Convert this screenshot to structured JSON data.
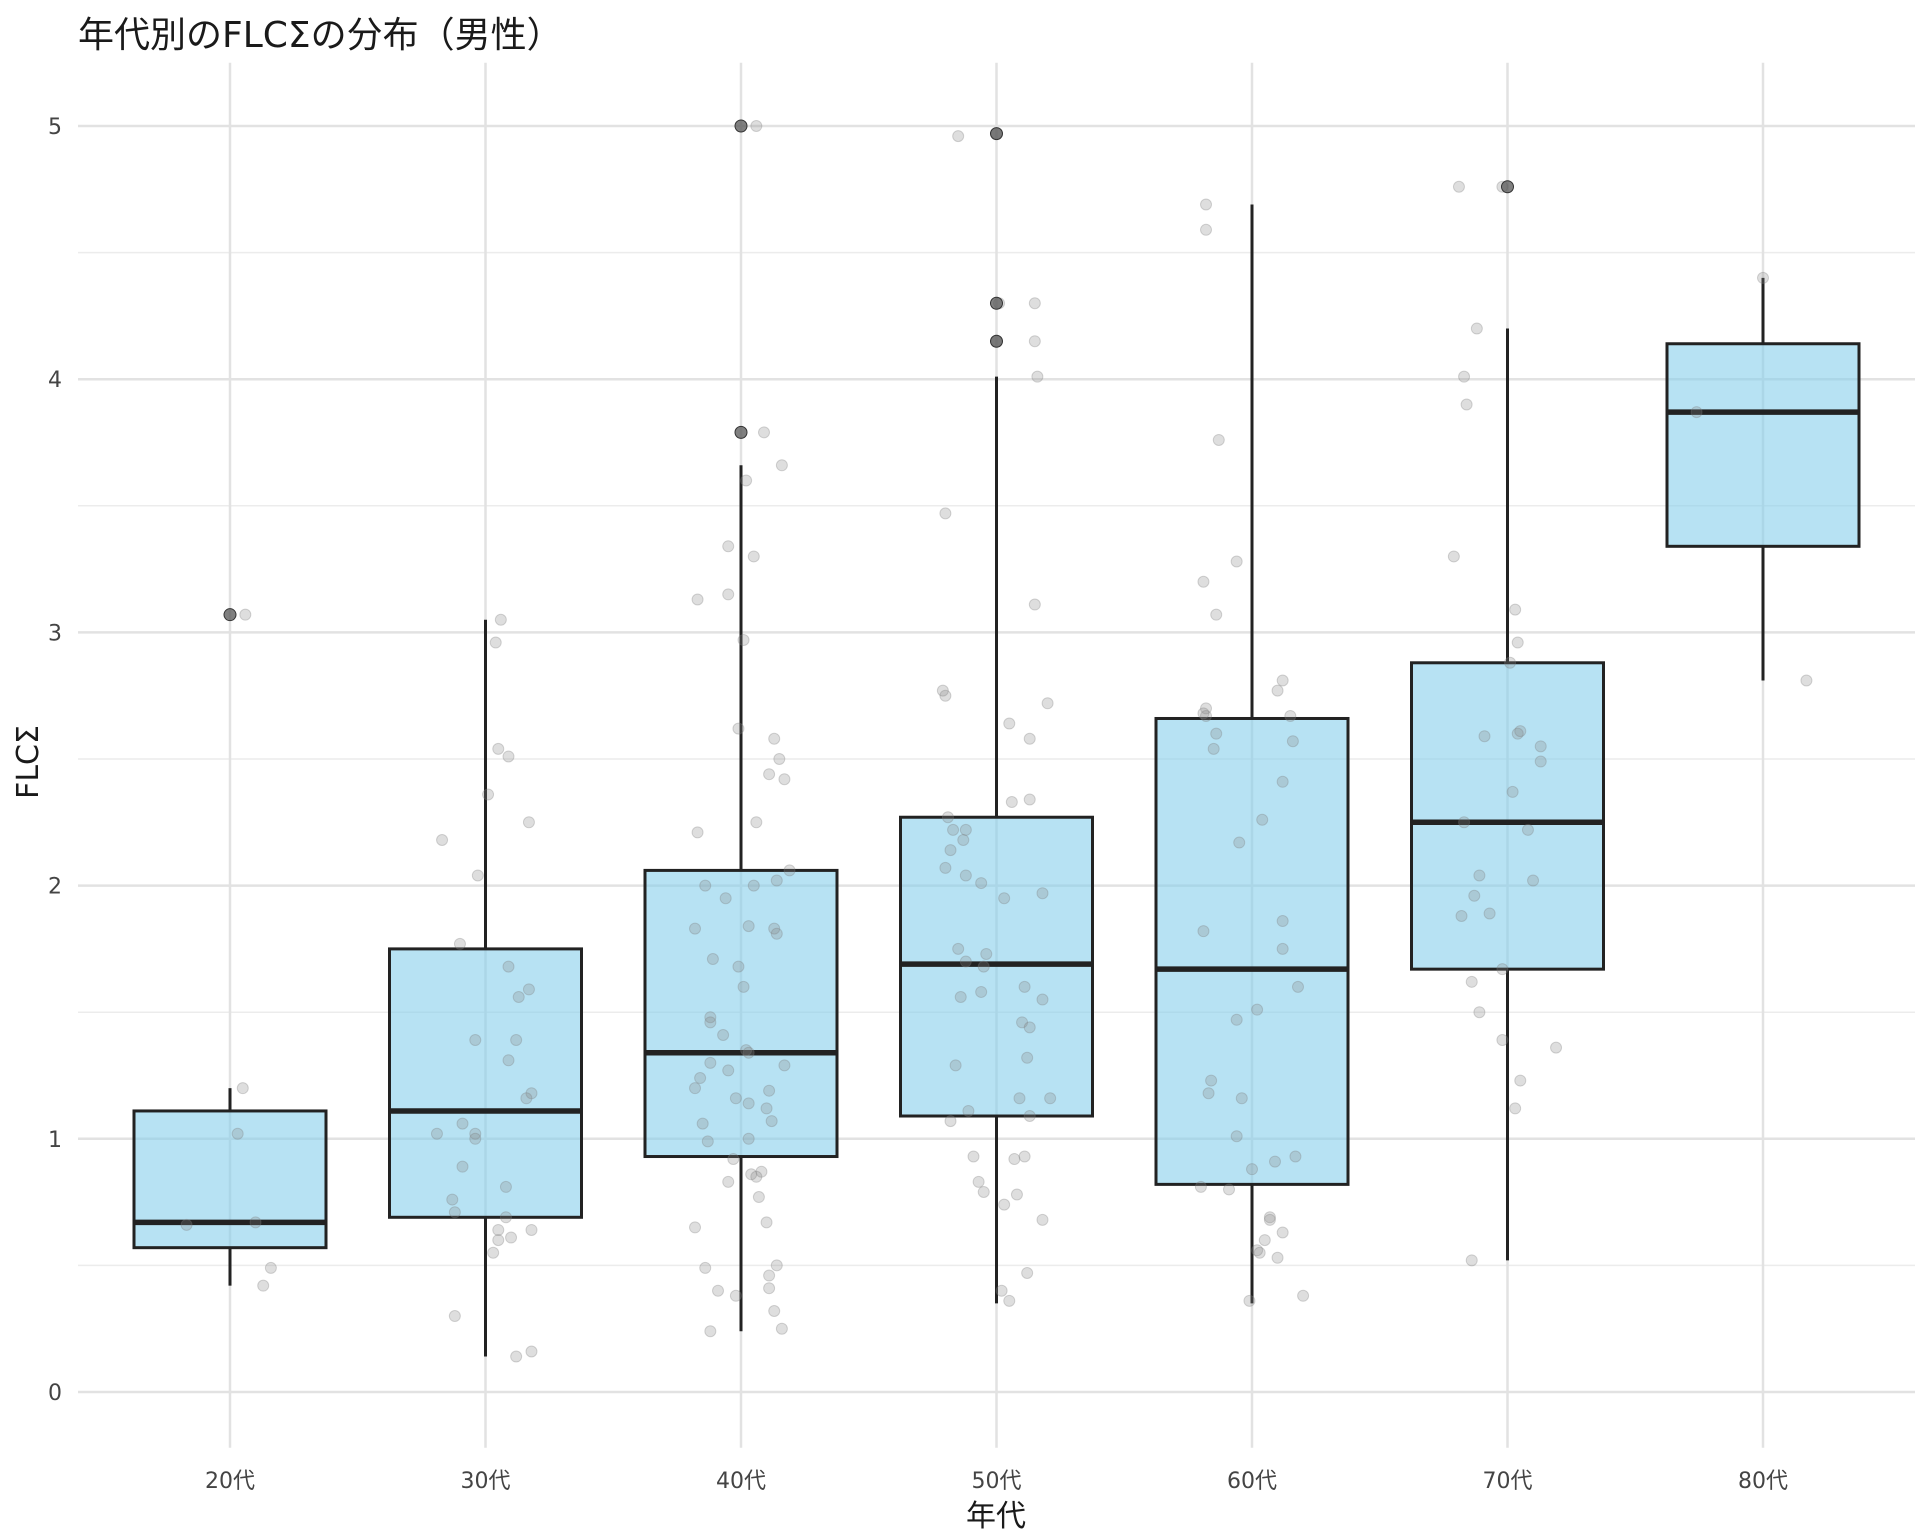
{
  "chart_data": {
    "type": "box",
    "title": "年代別のFLCΣの分布（男性）",
    "xlabel": "年代",
    "ylabel": "FLCΣ",
    "categories": [
      "20代",
      "30代",
      "40代",
      "50代",
      "60代",
      "70代",
      "80代"
    ],
    "y_ticks": [
      0,
      1,
      2,
      3,
      4,
      5
    ],
    "ylim": [
      -0.22,
      5.25
    ],
    "grid": true,
    "box_fill": "#87ceeb",
    "box_stroke": "#222222",
    "boxes": [
      {
        "category": "20代",
        "whisker_low": 0.42,
        "q1": 0.57,
        "median": 0.67,
        "q3": 1.11,
        "whisker_high": 1.2,
        "outliers": [
          3.07
        ]
      },
      {
        "category": "30代",
        "whisker_low": 0.14,
        "q1": 0.69,
        "median": 1.11,
        "q3": 1.75,
        "whisker_high": 3.05,
        "outliers": []
      },
      {
        "category": "40代",
        "whisker_low": 0.24,
        "q1": 0.93,
        "median": 1.34,
        "q3": 2.06,
        "whisker_high": 3.66,
        "outliers": [
          3.79,
          5.0
        ]
      },
      {
        "category": "50代",
        "whisker_low": 0.35,
        "q1": 1.09,
        "median": 1.69,
        "q3": 2.27,
        "whisker_high": 4.01,
        "outliers": [
          4.15,
          4.3,
          4.97
        ]
      },
      {
        "category": "60代",
        "whisker_low": 0.35,
        "q1": 0.82,
        "median": 1.67,
        "q3": 2.66,
        "whisker_high": 4.69,
        "outliers": []
      },
      {
        "category": "70代",
        "whisker_low": 0.52,
        "q1": 1.67,
        "median": 2.25,
        "q3": 2.88,
        "whisker_high": 4.2,
        "outliers": [
          4.76
        ]
      },
      {
        "category": "80代",
        "whisker_low": 2.81,
        "q1": 3.34,
        "median": 3.87,
        "q3": 4.14,
        "whisker_high": 4.4,
        "outliers": []
      }
    ],
    "jitter_points": [
      {
        "category": "20代",
        "points": [
          [
            0.06,
            3.07
          ],
          [
            0.05,
            1.2
          ],
          [
            0.03,
            1.02
          ],
          [
            -0.17,
            0.66
          ],
          [
            0.1,
            0.67
          ],
          [
            0.16,
            0.49
          ],
          [
            0.13,
            0.42
          ]
        ]
      },
      {
        "category": "30代",
        "points": [
          [
            0.06,
            3.05
          ],
          [
            0.04,
            2.96
          ],
          [
            0.05,
            2.54
          ],
          [
            0.09,
            2.51
          ],
          [
            0.01,
            2.36
          ],
          [
            -0.17,
            2.18
          ],
          [
            -0.03,
            2.04
          ],
          [
            0.17,
            2.25
          ],
          [
            -0.1,
            1.77
          ],
          [
            0.09,
            1.68
          ],
          [
            0.17,
            1.59
          ],
          [
            0.13,
            1.56
          ],
          [
            -0.04,
            1.39
          ],
          [
            0.12,
            1.39
          ],
          [
            0.09,
            1.31
          ],
          [
            0.18,
            1.18
          ],
          [
            0.16,
            1.16
          ],
          [
            -0.09,
            1.06
          ],
          [
            -0.04,
            1.02
          ],
          [
            -0.19,
            1.02
          ],
          [
            -0.04,
            1.0
          ],
          [
            -0.09,
            0.89
          ],
          [
            0.08,
            0.81
          ],
          [
            -0.13,
            0.76
          ],
          [
            -0.12,
            0.71
          ],
          [
            0.08,
            0.69
          ],
          [
            0.05,
            0.64
          ],
          [
            0.18,
            0.64
          ],
          [
            0.1,
            0.61
          ],
          [
            0.05,
            0.6
          ],
          [
            0.03,
            0.55
          ],
          [
            -0.12,
            0.3
          ],
          [
            0.18,
            0.16
          ],
          [
            0.12,
            0.14
          ]
        ]
      },
      {
        "category": "40代",
        "points": [
          [
            0.06,
            5.0
          ],
          [
            0.09,
            3.79
          ],
          [
            0.16,
            3.66
          ],
          [
            0.02,
            3.6
          ],
          [
            0.05,
            3.3
          ],
          [
            -0.05,
            3.34
          ],
          [
            -0.05,
            3.15
          ],
          [
            -0.17,
            3.13
          ],
          [
            0.01,
            2.97
          ],
          [
            -0.01,
            2.62
          ],
          [
            0.13,
            2.58
          ],
          [
            0.15,
            2.5
          ],
          [
            0.11,
            2.44
          ],
          [
            0.17,
            2.42
          ],
          [
            0.06,
            2.25
          ],
          [
            -0.17,
            2.21
          ],
          [
            0.19,
            2.06
          ],
          [
            0.14,
            2.02
          ],
          [
            0.05,
            2.0
          ],
          [
            -0.14,
            2.0
          ],
          [
            -0.06,
            1.95
          ],
          [
            0.03,
            1.84
          ],
          [
            -0.18,
            1.83
          ],
          [
            0.13,
            1.83
          ],
          [
            0.14,
            1.81
          ],
          [
            -0.11,
            1.71
          ],
          [
            -0.01,
            1.68
          ],
          [
            0.01,
            1.6
          ],
          [
            -0.12,
            1.48
          ],
          [
            -0.12,
            1.46
          ],
          [
            -0.07,
            1.41
          ],
          [
            0.02,
            1.35
          ],
          [
            0.03,
            1.34
          ],
          [
            -0.12,
            1.3
          ],
          [
            0.17,
            1.29
          ],
          [
            -0.05,
            1.27
          ],
          [
            -0.16,
            1.24
          ],
          [
            0.11,
            1.19
          ],
          [
            -0.18,
            1.2
          ],
          [
            -0.02,
            1.16
          ],
          [
            0.03,
            1.14
          ],
          [
            0.1,
            1.12
          ],
          [
            -0.15,
            1.06
          ],
          [
            0.12,
            1.07
          ],
          [
            0.03,
            1.0
          ],
          [
            -0.13,
            0.99
          ],
          [
            -0.03,
            0.92
          ],
          [
            0.08,
            0.87
          ],
          [
            0.04,
            0.86
          ],
          [
            0.06,
            0.85
          ],
          [
            -0.05,
            0.83
          ],
          [
            0.07,
            0.77
          ],
          [
            0.1,
            0.67
          ],
          [
            -0.18,
            0.65
          ],
          [
            0.14,
            0.5
          ],
          [
            -0.14,
            0.49
          ],
          [
            0.11,
            0.46
          ],
          [
            0.11,
            0.41
          ],
          [
            -0.09,
            0.4
          ],
          [
            -0.02,
            0.38
          ],
          [
            0.13,
            0.32
          ],
          [
            -0.12,
            0.24
          ],
          [
            0.16,
            0.25
          ]
        ]
      },
      {
        "category": "50代",
        "points": [
          [
            -0.15,
            4.96
          ],
          [
            0.0,
            4.97
          ],
          [
            0.01,
            4.3
          ],
          [
            0.15,
            4.3
          ],
          [
            0.0,
            4.15
          ],
          [
            0.15,
            4.15
          ],
          [
            0.16,
            4.01
          ],
          [
            -0.2,
            3.47
          ],
          [
            0.15,
            3.11
          ],
          [
            0.2,
            2.72
          ],
          [
            -0.2,
            2.75
          ],
          [
            -0.21,
            2.77
          ],
          [
            0.05,
            2.64
          ],
          [
            0.13,
            2.58
          ],
          [
            0.13,
            2.34
          ],
          [
            0.06,
            2.33
          ],
          [
            -0.19,
            2.27
          ],
          [
            -0.17,
            2.22
          ],
          [
            -0.12,
            2.22
          ],
          [
            -0.13,
            2.18
          ],
          [
            -0.18,
            2.14
          ],
          [
            -0.2,
            2.07
          ],
          [
            -0.12,
            2.04
          ],
          [
            -0.06,
            2.01
          ],
          [
            0.03,
            1.95
          ],
          [
            0.18,
            1.97
          ],
          [
            -0.15,
            1.75
          ],
          [
            -0.04,
            1.73
          ],
          [
            -0.12,
            1.7
          ],
          [
            -0.05,
            1.68
          ],
          [
            0.11,
            1.6
          ],
          [
            -0.06,
            1.58
          ],
          [
            -0.14,
            1.56
          ],
          [
            0.18,
            1.55
          ],
          [
            0.1,
            1.46
          ],
          [
            0.13,
            1.44
          ],
          [
            0.12,
            1.32
          ],
          [
            -0.16,
            1.29
          ],
          [
            0.09,
            1.16
          ],
          [
            0.21,
            1.16
          ],
          [
            0.13,
            1.09
          ],
          [
            -0.11,
            1.11
          ],
          [
            -0.18,
            1.07
          ],
          [
            -0.09,
            0.93
          ],
          [
            0.07,
            0.92
          ],
          [
            0.11,
            0.93
          ],
          [
            -0.07,
            0.83
          ],
          [
            -0.05,
            0.79
          ],
          [
            0.08,
            0.78
          ],
          [
            0.03,
            0.74
          ],
          [
            0.18,
            0.68
          ],
          [
            0.12,
            0.47
          ],
          [
            0.02,
            0.4
          ],
          [
            0.05,
            0.36
          ]
        ]
      },
      {
        "category": "60代",
        "points": [
          [
            -0.18,
            4.69
          ],
          [
            -0.18,
            4.59
          ],
          [
            -0.13,
            3.76
          ],
          [
            -0.06,
            3.28
          ],
          [
            -0.19,
            3.2
          ],
          [
            -0.14,
            3.07
          ],
          [
            0.12,
            2.81
          ],
          [
            0.1,
            2.77
          ],
          [
            -0.18,
            2.7
          ],
          [
            -0.18,
            2.67
          ],
          [
            -0.19,
            2.68
          ],
          [
            0.15,
            2.67
          ],
          [
            -0.14,
            2.6
          ],
          [
            0.16,
            2.57
          ],
          [
            -0.15,
            2.54
          ],
          [
            0.12,
            2.41
          ],
          [
            0.04,
            2.26
          ],
          [
            -0.05,
            2.17
          ],
          [
            -0.19,
            1.82
          ],
          [
            0.12,
            1.86
          ],
          [
            0.12,
            1.75
          ],
          [
            0.18,
            1.6
          ],
          [
            0.02,
            1.51
          ],
          [
            -0.06,
            1.47
          ],
          [
            -0.16,
            1.23
          ],
          [
            -0.17,
            1.18
          ],
          [
            -0.04,
            1.16
          ],
          [
            -0.06,
            1.01
          ],
          [
            0.0,
            0.88
          ],
          [
            0.09,
            0.91
          ],
          [
            0.17,
            0.93
          ],
          [
            -0.2,
            0.81
          ],
          [
            -0.09,
            0.8
          ],
          [
            0.07,
            0.69
          ],
          [
            0.07,
            0.68
          ],
          [
            0.12,
            0.63
          ],
          [
            0.05,
            0.6
          ],
          [
            0.03,
            0.55
          ],
          [
            0.02,
            0.56
          ],
          [
            0.1,
            0.53
          ],
          [
            0.2,
            0.38
          ],
          [
            -0.01,
            0.36
          ]
        ]
      },
      {
        "category": "70代",
        "points": [
          [
            -0.19,
            4.76
          ],
          [
            -0.02,
            4.76
          ],
          [
            -0.12,
            4.2
          ],
          [
            -0.17,
            4.01
          ],
          [
            -0.16,
            3.9
          ],
          [
            -0.21,
            3.3
          ],
          [
            0.03,
            3.09
          ],
          [
            0.04,
            2.96
          ],
          [
            0.01,
            2.88
          ],
          [
            0.04,
            2.6
          ],
          [
            0.05,
            2.61
          ],
          [
            -0.09,
            2.59
          ],
          [
            0.13,
            2.55
          ],
          [
            0.13,
            2.49
          ],
          [
            0.02,
            2.37
          ],
          [
            -0.17,
            2.25
          ],
          [
            0.08,
            2.22
          ],
          [
            -0.11,
            2.04
          ],
          [
            0.1,
            2.02
          ],
          [
            -0.13,
            1.96
          ],
          [
            -0.18,
            1.88
          ],
          [
            -0.07,
            1.89
          ],
          [
            -0.02,
            1.67
          ],
          [
            -0.14,
            1.62
          ],
          [
            -0.11,
            1.5
          ],
          [
            -0.02,
            1.39
          ],
          [
            0.19,
            1.36
          ],
          [
            0.05,
            1.23
          ],
          [
            0.03,
            1.12
          ],
          [
            -0.14,
            0.52
          ]
        ]
      },
      {
        "category": "80代",
        "points": [
          [
            0.0,
            4.4
          ],
          [
            -0.26,
            3.87
          ],
          [
            0.17,
            2.81
          ]
        ]
      }
    ]
  }
}
